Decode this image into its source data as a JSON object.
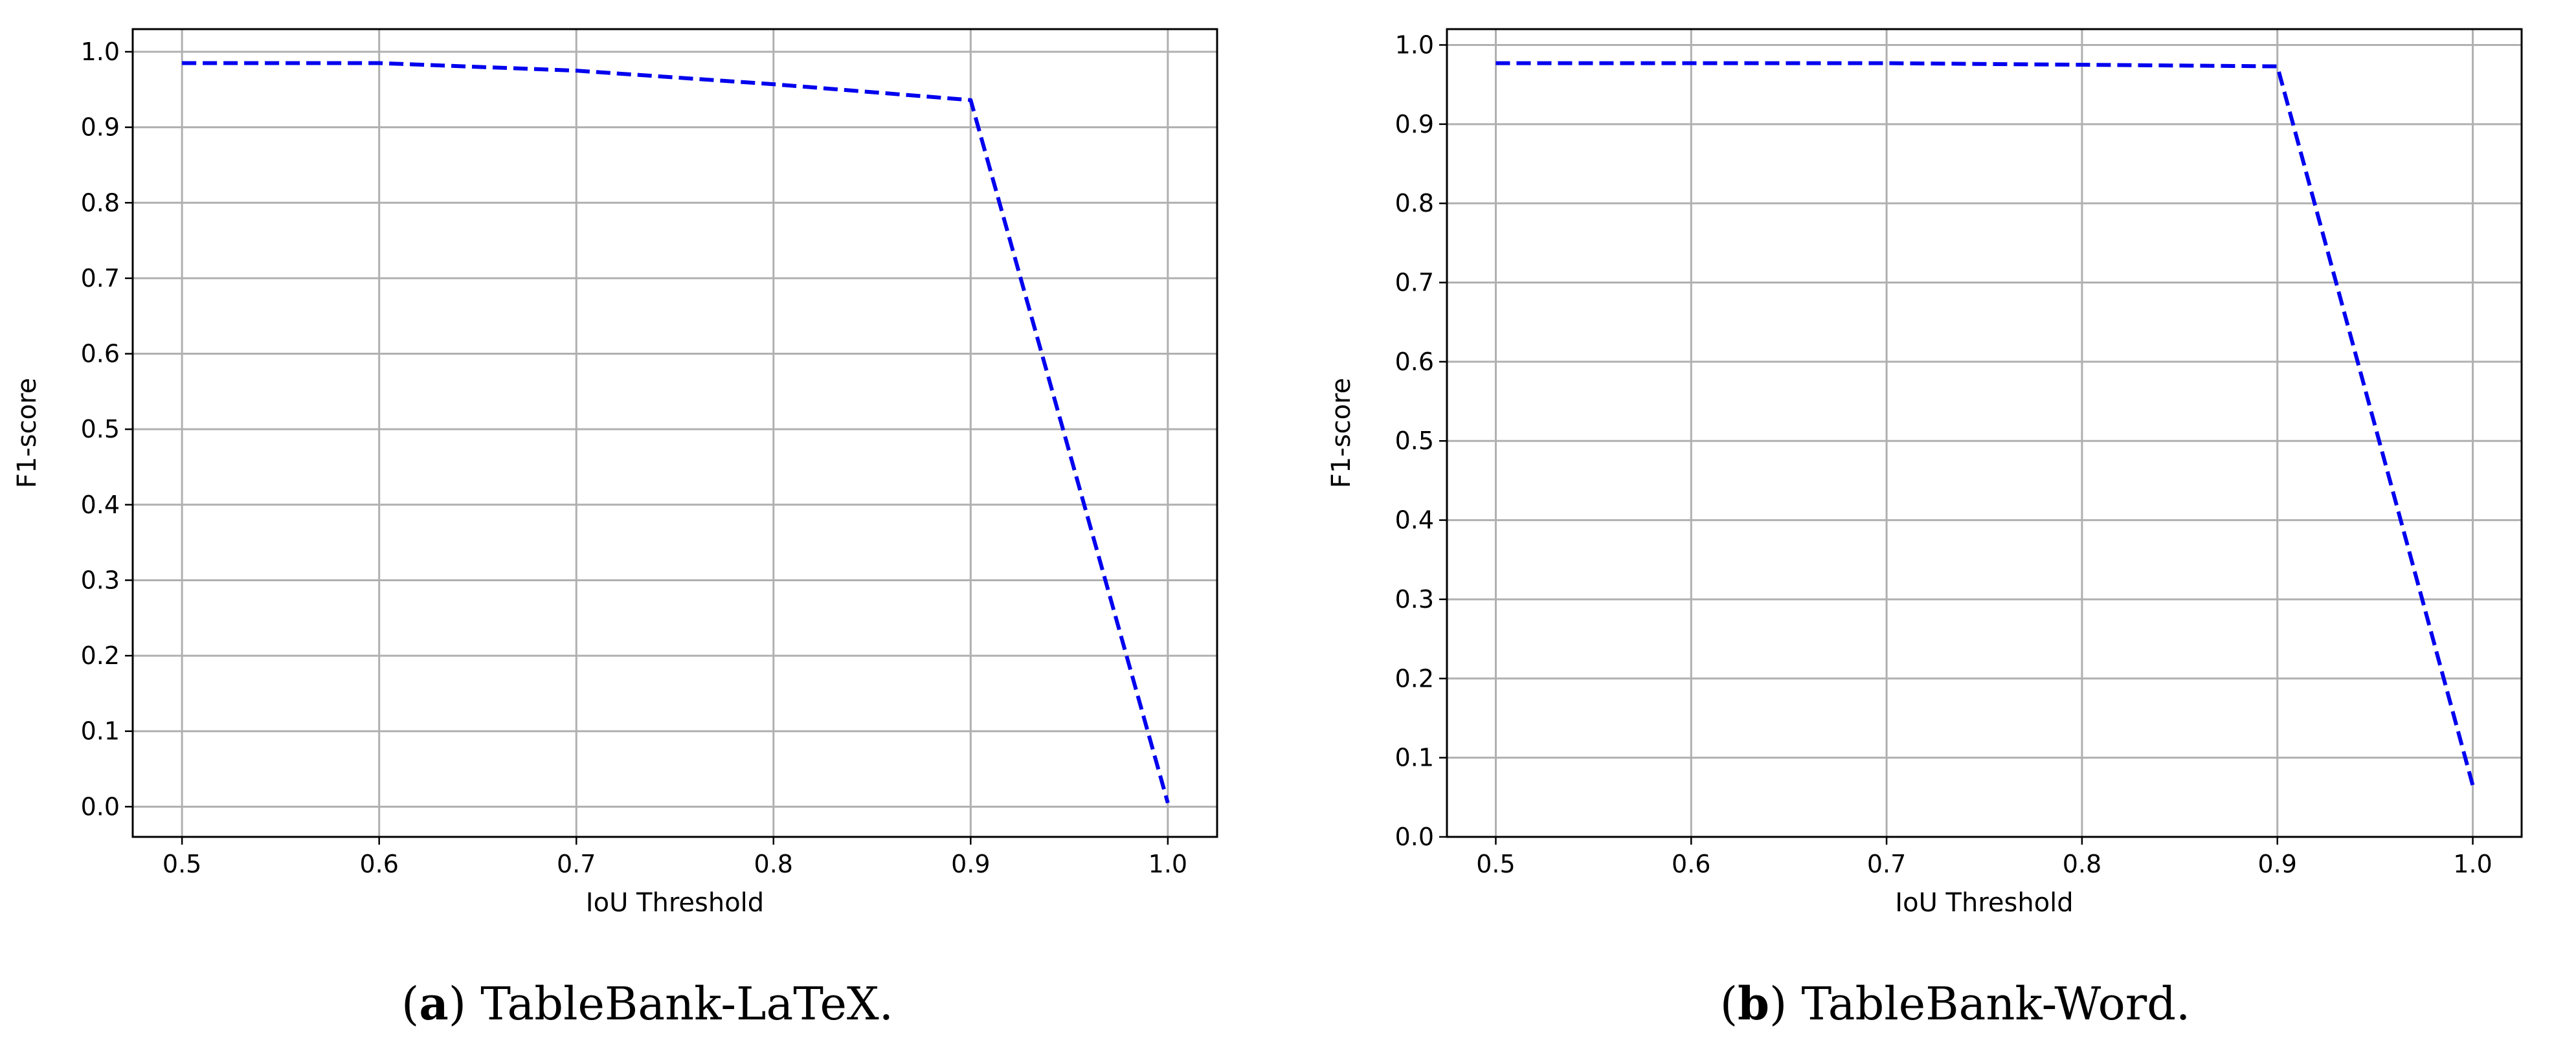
{
  "chart_data": [
    {
      "type": "line",
      "caption_letter": "a",
      "caption_text": "TableBank-LaTeX.",
      "xlabel": "IoU Threshold",
      "ylabel": "F1-score",
      "xlim": [
        0.475,
        1.025
      ],
      "ylim": [
        -0.04,
        1.03
      ],
      "xticks": [
        "0.5",
        "0.6",
        "0.7",
        "0.8",
        "0.9",
        "1.0"
      ],
      "yticks": [
        "0.0",
        "0.1",
        "0.2",
        "0.3",
        "0.4",
        "0.5",
        "0.6",
        "0.7",
        "0.8",
        "0.9",
        "1.0"
      ],
      "grid": true,
      "line_color": "#0000ee",
      "line_style": "dashed",
      "series": [
        {
          "x": [
            0.5,
            0.6,
            0.7,
            0.8,
            0.9,
            1.0
          ],
          "y": [
            0.985,
            0.985,
            0.975,
            0.957,
            0.936,
            0.005
          ]
        }
      ]
    },
    {
      "type": "line",
      "caption_letter": "b",
      "caption_text": "TableBank-Word.",
      "xlabel": "IoU Threshold",
      "ylabel": "F1-score",
      "xlim": [
        0.475,
        1.025
      ],
      "ylim": [
        0.0,
        1.02
      ],
      "xticks": [
        "0.5",
        "0.6",
        "0.7",
        "0.8",
        "0.9",
        "1.0"
      ],
      "yticks": [
        "0.0",
        "0.1",
        "0.2",
        "0.3",
        "0.4",
        "0.5",
        "0.6",
        "0.7",
        "0.8",
        "0.9",
        "1.0"
      ],
      "grid": true,
      "line_color": "#0000ee",
      "line_style": "dashed",
      "series": [
        {
          "x": [
            0.5,
            0.6,
            0.7,
            0.8,
            0.9,
            1.0
          ],
          "y": [
            0.977,
            0.977,
            0.977,
            0.975,
            0.973,
            0.065
          ]
        }
      ]
    }
  ]
}
